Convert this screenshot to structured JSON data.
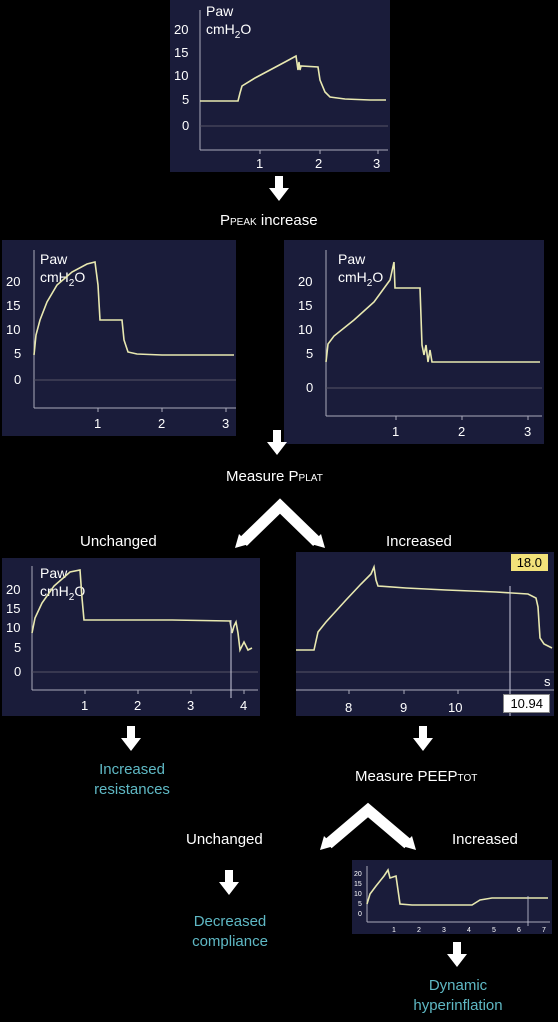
{
  "panels": {
    "top": {
      "ylabel": "Paw",
      "unit": "cmH2O",
      "yticks": [
        "20",
        "15",
        "10",
        "5",
        "0"
      ],
      "xticks": [
        "1",
        "2",
        "3"
      ]
    },
    "mid_left": {
      "ylabel": "Paw",
      "unit": "cmH2O",
      "yticks": [
        "20",
        "15",
        "10",
        "5",
        "0"
      ],
      "xticks": [
        "1",
        "2",
        "3"
      ]
    },
    "mid_right": {
      "ylabel": "Paw",
      "unit": "cmH2O",
      "yticks": [
        "20",
        "15",
        "10",
        "5",
        "0"
      ],
      "xticks": [
        "1",
        "2",
        "3"
      ]
    },
    "lower_left": {
      "ylabel": "Paw",
      "unit": "cmH2O",
      "yticks": [
        "20",
        "15",
        "10",
        "5",
        "0"
      ],
      "xticks": [
        "1",
        "2",
        "3",
        "4"
      ]
    },
    "lower_right": {
      "xticks": [
        "8",
        "9",
        "10"
      ],
      "x_unit": "s",
      "badge_top": "18.0",
      "badge_bottom": "10.94"
    },
    "small": {
      "yticks": [
        "20",
        "15",
        "10",
        "5",
        "0"
      ],
      "xticks": [
        "1",
        "2",
        "3",
        "4",
        "5",
        "6",
        "7"
      ]
    }
  },
  "text": {
    "ppeak_prefix": "P",
    "ppeak_sub": "PEAK",
    "ppeak_suffix": " increase",
    "measure_pplat_prefix": "Measure P",
    "measure_pplat_sub": "PLAT",
    "unchanged_1": "Unchanged",
    "increased_1": "Increased",
    "increased_resistances_1": "Increased",
    "increased_resistances_2": "resistances",
    "measure_peep_prefix": "Measure PEEP",
    "measure_peep_sub": "TOT",
    "unchanged_2": "Unchanged",
    "increased_2": "Increased",
    "decreased_compliance_1": "Decreased",
    "decreased_compliance_2": "compliance",
    "dynamic_hyperinflation_1": "Dynamic",
    "dynamic_hyperinflation_2": "hyperinflation"
  },
  "colors": {
    "panel_bg": "#1a1c3a",
    "trace": "#e8e8b0",
    "outcome_text": "#5fb8c4",
    "badge_yellow": "#f3e27a",
    "badge_white": "#ffffff"
  }
}
